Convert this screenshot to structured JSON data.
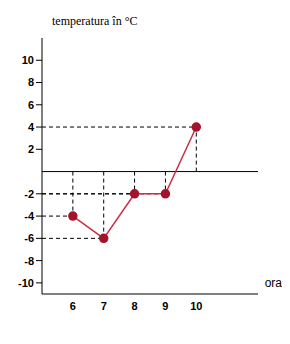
{
  "chart_data": {
    "type": "line",
    "y_label": "temperatura în °C",
    "x_label": "ora",
    "x": [
      6,
      7,
      8,
      9,
      10
    ],
    "values": [
      -4,
      -6,
      -2,
      -2,
      4
    ],
    "color": "#cc2e45",
    "marker": "circle",
    "xlim": [
      5,
      12
    ],
    "xticks": [
      6,
      7,
      8,
      9,
      10
    ],
    "ylim": [
      -11,
      12
    ],
    "yticks": [
      -10,
      -8,
      -6,
      -4,
      -2,
      2,
      4,
      6,
      8,
      10
    ],
    "grid": false
  }
}
